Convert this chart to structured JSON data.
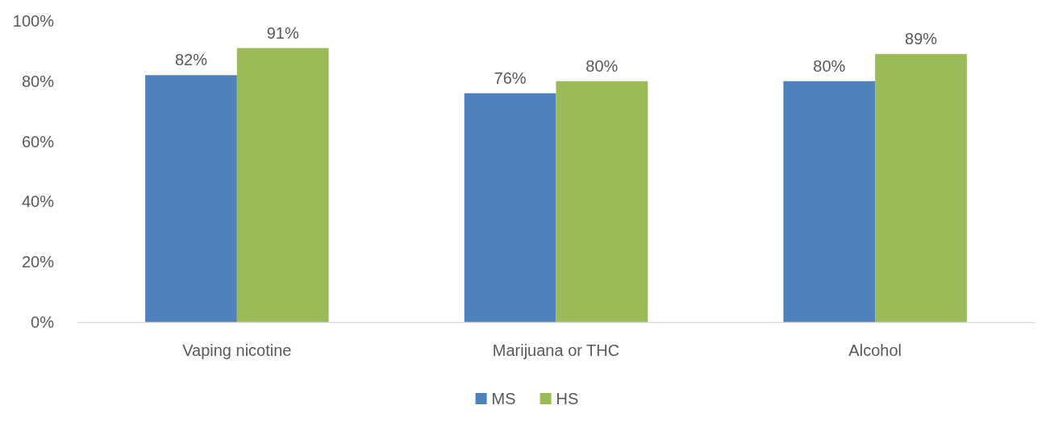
{
  "chart_data": {
    "type": "bar",
    "categories": [
      "Vaping nicotine",
      "Marijuana or THC",
      "Alcohol"
    ],
    "series": [
      {
        "name": "MS",
        "color": "#4f81bd",
        "values": [
          82,
          76,
          80
        ],
        "value_labels": [
          "82%",
          "76%",
          "80%"
        ]
      },
      {
        "name": "HS",
        "color": "#9bbb59",
        "values": [
          91,
          80,
          89
        ],
        "value_labels": [
          "91%",
          "80%",
          "89%"
        ]
      }
    ],
    "ylim": [
      0,
      100
    ],
    "yticks": [
      {
        "value": 0,
        "label": "0%"
      },
      {
        "value": 20,
        "label": "20%"
      },
      {
        "value": 40,
        "label": "40%"
      },
      {
        "value": 60,
        "label": "60%"
      },
      {
        "value": 80,
        "label": "80%"
      },
      {
        "value": 100,
        "label": "100%"
      }
    ],
    "grid": false,
    "legend": "bottom"
  }
}
